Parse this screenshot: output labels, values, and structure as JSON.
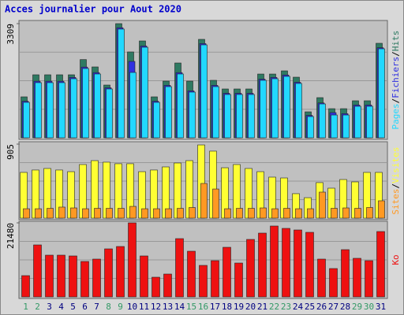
{
  "title": "Acces journalier pour Aout 2020",
  "categories": [
    "1",
    "2",
    "3",
    "4",
    "5",
    "6",
    "7",
    "8",
    "9",
    "10",
    "11",
    "12",
    "13",
    "14",
    "15",
    "16",
    "17",
    "18",
    "19",
    "20",
    "21",
    "22",
    "23",
    "24",
    "25",
    "26",
    "27",
    "28",
    "29",
    "30",
    "31"
  ],
  "category_colors": [
    "#339966",
    "#339966",
    "#000080",
    "#000080",
    "#000080",
    "#000080",
    "#000080",
    "#339966",
    "#339966",
    "#000080",
    "#000080",
    "#000080",
    "#000080",
    "#000080",
    "#339966",
    "#339966",
    "#000080",
    "#000080",
    "#000080",
    "#000080",
    "#000080",
    "#339966",
    "#339966",
    "#000080",
    "#000080",
    "#000080",
    "#000080",
    "#000080",
    "#339966",
    "#339966",
    "#000080"
  ],
  "chart_data": [
    {
      "type": "bar",
      "ylim": [
        0,
        3309
      ],
      "yticks": [
        3309
      ],
      "series": [
        {
          "name": "Hits",
          "color": "#2e7a62",
          "values": [
            1187,
            1826,
            1826,
            1826,
            1826,
            2267,
            2054,
            1529,
            3309,
            2488,
            2807,
            1187,
            1643,
            2168,
            1643,
            2853,
            1666,
            1415,
            1415,
            1415,
            1848,
            1848,
            1940,
            1757,
            753,
            1164,
            844,
            844,
            1073,
            1073,
            2739
          ]
        },
        {
          "name": "Fichiers",
          "color": "#3030e0",
          "values": [
            1060,
            1640,
            1640,
            1640,
            1750,
            2050,
            1890,
            1450,
            3190,
            2214,
            2660,
            1060,
            1520,
            1890,
            1360,
            2730,
            1520,
            1290,
            1290,
            1290,
            1700,
            1750,
            1820,
            1610,
            650,
            1010,
            730,
            700,
            950,
            950,
            2610
          ]
        },
        {
          "name": "Pages",
          "color": "#22d8ff",
          "values": [
            1027,
            1598,
            1598,
            1598,
            1712,
            2008,
            1849,
            1415,
            3150,
            1894,
            2624,
            1027,
            1483,
            1849,
            1324,
            2693,
            1483,
            1255,
            1255,
            1255,
            1666,
            1712,
            1780,
            1575,
            616,
            981,
            661,
            661,
            913,
            913,
            2579
          ]
        }
      ]
    },
    {
      "type": "bar",
      "ylim": [
        0,
        905
      ],
      "yticks": [
        905
      ],
      "series": [
        {
          "name": "Visites",
          "color": "#ffff33",
          "values": [
            559,
            588,
            607,
            588,
            568,
            655,
            703,
            684,
            665,
            665,
            568,
            588,
            626,
            674,
            703,
            895,
            819,
            616,
            655,
            607,
            568,
            501,
            491,
            299,
            250,
            434,
            366,
            472,
            443,
            559,
            559
          ]
        },
        {
          "name": "Sites",
          "color": "#ff9922",
          "values": [
            115,
            115,
            120,
            135,
            125,
            115,
            120,
            120,
            120,
            144,
            115,
            115,
            115,
            120,
            130,
            424,
            356,
            115,
            120,
            120,
            125,
            115,
            120,
            115,
            115,
            318,
            120,
            125,
            120,
            130,
            212
          ]
        }
      ]
    },
    {
      "type": "bar",
      "ylim": [
        0,
        21480
      ],
      "yticks": [
        21480
      ],
      "series": [
        {
          "name": "Ko",
          "color": "#ee1111",
          "values": [
            6170,
            15081,
            12111,
            12111,
            11882,
            10283,
            10968,
            13938,
            14624,
            21480,
            11882,
            5713,
            6627,
            16909,
            13253,
            9140,
            10511,
            14395,
            9826,
            16681,
            18509,
            20566,
            19880,
            19423,
            18737,
            10968,
            8226,
            13710,
            11197,
            10511,
            18966
          ]
        }
      ]
    }
  ]
}
